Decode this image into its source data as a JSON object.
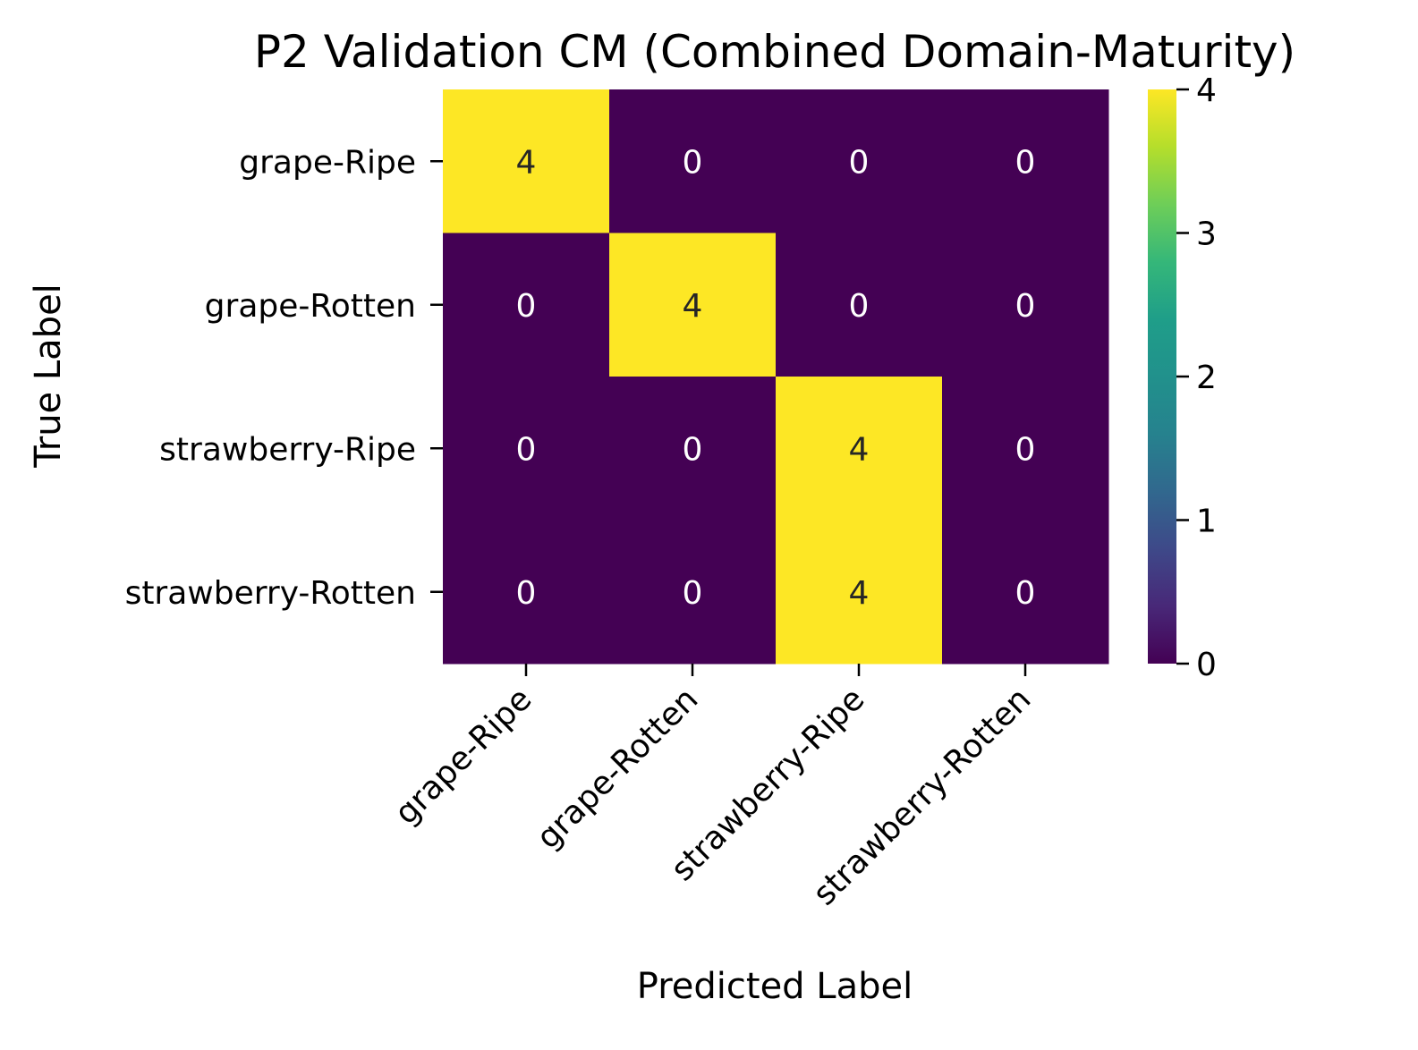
{
  "chart_data": {
    "type": "heatmap",
    "title": "P2 Validation CM (Combined Domain-Maturity)",
    "xlabel": "Predicted Label",
    "ylabel": "True Label",
    "x_categories": [
      "grape-Ripe",
      "grape-Rotten",
      "strawberry-Ripe",
      "strawberry-Rotten"
    ],
    "y_categories": [
      "grape-Ripe",
      "grape-Rotten",
      "strawberry-Ripe",
      "strawberry-Rotten"
    ],
    "values": [
      [
        4,
        0,
        0,
        0
      ],
      [
        0,
        4,
        0,
        0
      ],
      [
        0,
        0,
        4,
        0
      ],
      [
        0,
        0,
        4,
        0
      ]
    ],
    "annotations": true,
    "colormap": "viridis",
    "colorbar": {
      "range": [
        0,
        4
      ],
      "ticks": [
        0,
        1,
        2,
        3,
        4
      ]
    },
    "colors": {
      "low": "#440154",
      "high": "#fde725",
      "annotation_on_dark": "#ffffff",
      "annotation_on_light": "#262626",
      "text": "#000000"
    }
  }
}
